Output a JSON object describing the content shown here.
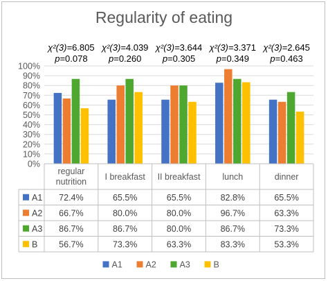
{
  "chart_data": {
    "type": "bar",
    "title": "Regularity of eating",
    "categories": [
      "regular nutrition",
      "I breakfast",
      "II breakfast",
      "lunch",
      "dinner"
    ],
    "category_lines": [
      [
        "regular",
        "nutrition"
      ],
      [
        "I breakfast"
      ],
      [
        "II breakfast"
      ],
      [
        "lunch"
      ],
      [
        "dinner"
      ]
    ],
    "series": [
      {
        "name": "A1",
        "color": "#4472c4",
        "values": [
          72.4,
          65.5,
          65.5,
          82.8,
          65.5
        ],
        "labels": [
          "72.4%",
          "65.5%",
          "65.5%",
          "82.8%",
          "65.5%"
        ]
      },
      {
        "name": "A2",
        "color": "#ed7d31",
        "values": [
          66.7,
          80.0,
          80.0,
          96.7,
          63.3
        ],
        "labels": [
          "66.7%",
          "80.0%",
          "80.0%",
          "96.7%",
          "63.3%"
        ]
      },
      {
        "name": "A3",
        "color": "#4ea72e",
        "values": [
          86.7,
          86.7,
          80.0,
          86.7,
          73.3
        ],
        "labels": [
          "86.7%",
          "86.7%",
          "80.0%",
          "86.7%",
          "73.3%"
        ]
      },
      {
        "name": "B",
        "color": "#ffc000",
        "values": [
          56.7,
          73.3,
          63.3,
          83.3,
          53.3
        ],
        "labels": [
          "56.7%",
          "73.3%",
          "63.3%",
          "83.3%",
          "53.3%"
        ]
      }
    ],
    "y_ticks": [
      "0%",
      "10%",
      "20%",
      "30%",
      "40%",
      "50%",
      "60%",
      "70%",
      "80%",
      "90%",
      "100%"
    ],
    "ylim": [
      0,
      100
    ],
    "grid": true,
    "data_table": true,
    "legend_position": "bottom",
    "annotations": [
      {
        "chi": "6.805",
        "p": "0.078"
      },
      {
        "chi": "4.039",
        "p": "0.260"
      },
      {
        "chi": "3.644",
        "p": "0.305"
      },
      {
        "chi": "3.371",
        "p": "0.349"
      },
      {
        "chi": "2.645",
        "p": "0.463"
      }
    ],
    "chi_prefix": "χ²(3)=",
    "p_prefix": "p",
    "p_eq": "="
  }
}
